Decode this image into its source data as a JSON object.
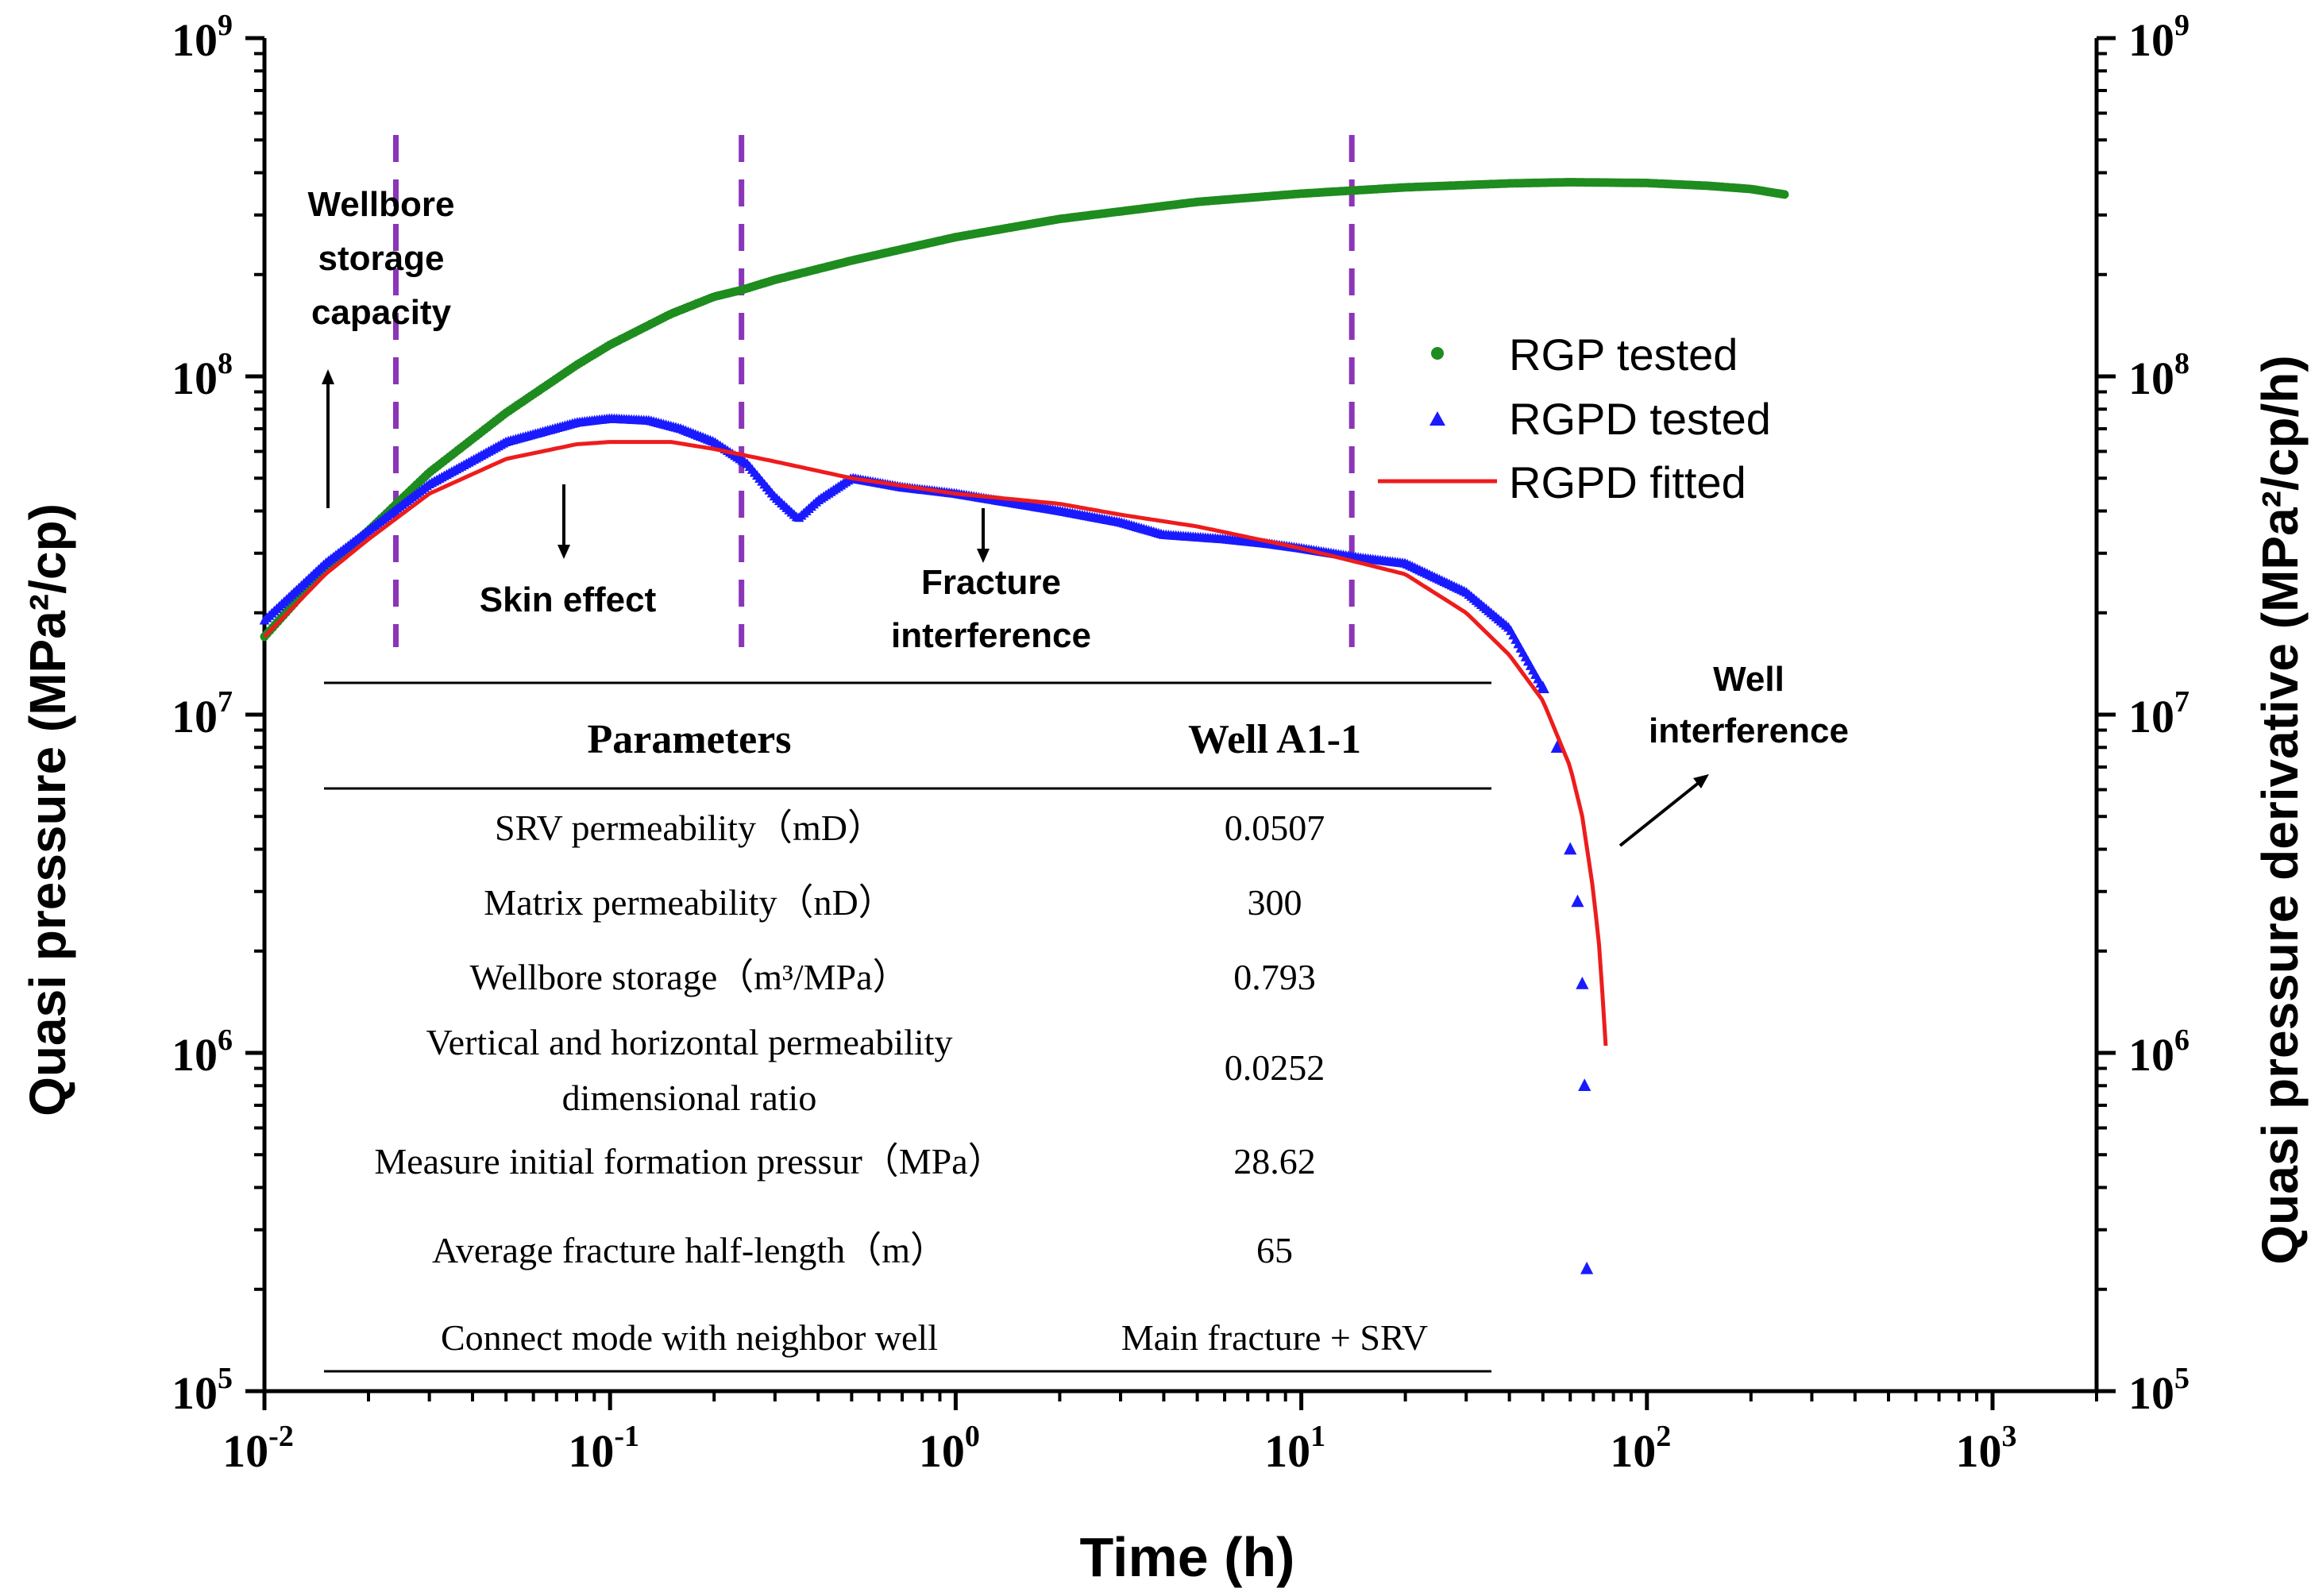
{
  "chart_data": {
    "type": "scatter",
    "title": "",
    "xlabel": "Time (h)",
    "ylabel_left": "Quasi pressure (MPa²/cp)",
    "ylabel_right": "Quasi pressure derivative (MPa²/cp/h)",
    "x_scale": "log",
    "y_scale": "log",
    "xlim": [
      0.01,
      2000
    ],
    "ylim": [
      100000,
      1000000000
    ],
    "x_ticks": [
      {
        "value": 0.01,
        "base": "10",
        "exp": "-2"
      },
      {
        "value": 0.1,
        "base": "10",
        "exp": "-1"
      },
      {
        "value": 1,
        "base": "10",
        "exp": "0"
      },
      {
        "value": 10,
        "base": "10",
        "exp": "1"
      },
      {
        "value": 100,
        "base": "10",
        "exp": "2"
      },
      {
        "value": 1000,
        "base": "10",
        "exp": "3"
      }
    ],
    "y_ticks": [
      {
        "value": 100000,
        "base": "10",
        "exp": "5"
      },
      {
        "value": 1000000,
        "base": "10",
        "exp": "6"
      },
      {
        "value": 10000000,
        "base": "10",
        "exp": "7"
      },
      {
        "value": 100000000,
        "base": "10",
        "exp": "8"
      },
      {
        "value": 1000000000,
        "base": "10",
        "exp": "9"
      }
    ],
    "series": [
      {
        "name": "RGP tested",
        "marker": "dot",
        "color": "#1e8c1e",
        "x": [
          0.01,
          0.015,
          0.02,
          0.03,
          0.05,
          0.08,
          0.1,
          0.15,
          0.2,
          0.24,
          0.3,
          0.5,
          1,
          2,
          5,
          10,
          20,
          40,
          60,
          100,
          150,
          200,
          250
        ],
        "y": [
          17000000,
          27000000,
          35000000,
          52000000,
          78000000,
          108000000,
          124000000,
          153000000,
          172000000,
          180000000,
          193000000,
          220000000,
          258000000,
          292000000,
          328000000,
          347000000,
          362000000,
          372000000,
          375000000,
          373000000,
          366000000,
          358000000,
          345000000
        ]
      },
      {
        "name": "RGPD tested",
        "marker": "triangle",
        "color": "#1a1aff",
        "x": [
          0.01,
          0.015,
          0.02,
          0.03,
          0.05,
          0.08,
          0.1,
          0.13,
          0.16,
          0.2,
          0.25,
          0.3,
          0.35,
          0.4,
          0.5,
          0.7,
          1,
          1.5,
          2,
          3,
          4,
          6,
          8,
          10,
          15,
          20,
          30,
          40,
          50,
          55,
          60,
          63,
          65,
          66,
          67
        ],
        "y": [
          19000000,
          28000000,
          35000000,
          48000000,
          64000000,
          73000000,
          75000000,
          74000000,
          70000000,
          64000000,
          55000000,
          44000000,
          38000000,
          43000000,
          50000000,
          47000000,
          45000000,
          42000000,
          40000000,
          37000000,
          34000000,
          33000000,
          32000000,
          31000000,
          29000000,
          28000000,
          23000000,
          18000000,
          12000000,
          8000000,
          4000000,
          2800000,
          1600000,
          800000,
          230000
        ]
      },
      {
        "name": "RGPD fitted",
        "marker": "line",
        "color": "#ee1c1c",
        "x": [
          0.01,
          0.015,
          0.02,
          0.03,
          0.05,
          0.08,
          0.1,
          0.15,
          0.2,
          0.3,
          0.5,
          1,
          2,
          3,
          5,
          10,
          15,
          20,
          30,
          40,
          50,
          60,
          65,
          70,
          73,
          75,
          76
        ],
        "y": [
          17000000,
          26000000,
          33000000,
          45000000,
          57000000,
          63000000,
          64000000,
          64000000,
          61000000,
          56000000,
          50000000,
          45000000,
          42000000,
          39000000,
          36000000,
          31000000,
          28000000,
          26000000,
          20000000,
          15000000,
          11000000,
          7000000,
          5000000,
          3000000,
          2000000,
          1300000,
          1050000
        ]
      }
    ],
    "legend": {
      "position": "top-right",
      "entries": [
        "RGP tested",
        "RGPD tested",
        "RGPD fitted"
      ]
    },
    "vertical_lines_x": [
      0.024,
      0.24,
      14
    ],
    "annotations": {
      "wellbore_storage": [
        "Wellbore",
        "storage",
        "capacity"
      ],
      "skin_effect": "Skin effect",
      "fracture_interference": [
        "Fracture",
        "interference"
      ],
      "well_interference": [
        "Well",
        "interference"
      ]
    },
    "table": {
      "headers": [
        "Parameters",
        "Well A1-1"
      ],
      "rows": [
        {
          "param": [
            "SRV permeability（mD）"
          ],
          "value": "0.0507"
        },
        {
          "param": [
            "Matrix permeability（nD）"
          ],
          "value": "300"
        },
        {
          "param": [
            "Wellbore storage（m³/MPa）"
          ],
          "value": "0.793"
        },
        {
          "param": [
            "Vertical and horizontal permeability",
            "dimensional ratio"
          ],
          "value": "0.0252"
        },
        {
          "param": [
            "Measure initial formation pressur（MPa）"
          ],
          "value": "28.62"
        },
        {
          "param": [
            "Average fracture half-length（m）"
          ],
          "value": "65"
        },
        {
          "param": [
            "Connect mode with neighbor well"
          ],
          "value": "Main fracture + SRV"
        }
      ]
    }
  }
}
